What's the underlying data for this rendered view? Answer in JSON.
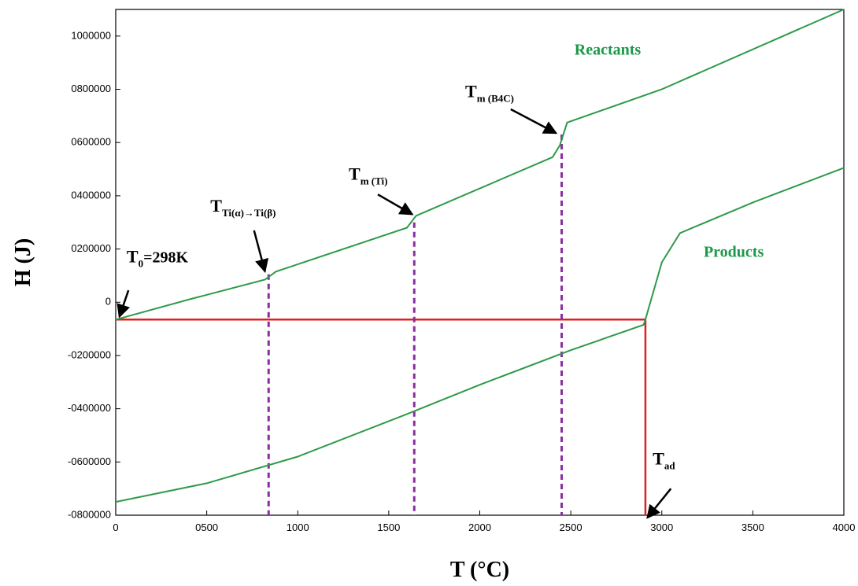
{
  "chart_data": {
    "type": "line",
    "title": "",
    "xlabel": "T (°C)",
    "ylabel": "H (J)",
    "xlim": [
      0,
      4000
    ],
    "ylim": [
      -800000,
      1100000
    ],
    "x_ticks": [
      {
        "value": 0,
        "label": "0"
      },
      {
        "value": 500,
        "label": "0500"
      },
      {
        "value": 1000,
        "label": "1000"
      },
      {
        "value": 1500,
        "label": "1500"
      },
      {
        "value": 2000,
        "label": "2000"
      },
      {
        "value": 2500,
        "label": "2500"
      },
      {
        "value": 3000,
        "label": "3000"
      },
      {
        "value": 3500,
        "label": "3500"
      },
      {
        "value": 4000,
        "label": "4000"
      }
    ],
    "y_ticks": [
      {
        "value": 1000000,
        "label": "1000000"
      },
      {
        "value": 800000,
        "label": "0800000"
      },
      {
        "value": 600000,
        "label": "0600000"
      },
      {
        "value": 400000,
        "label": "0400000"
      },
      {
        "value": 200000,
        "label": "0200000"
      },
      {
        "value": 0,
        "label": "0"
      },
      {
        "value": -200000,
        "label": "-0200000"
      },
      {
        "value": -400000,
        "label": "-0400000"
      },
      {
        "value": -600000,
        "label": "-0600000"
      },
      {
        "value": -800000,
        "label": "-0800000"
      }
    ],
    "grid": false,
    "series": [
      {
        "name": "Reactants",
        "color": "#2e9a4a",
        "points": [
          [
            0,
            -65000
          ],
          [
            400,
            10000
          ],
          [
            820,
            85000
          ],
          [
            880,
            115000
          ],
          [
            1600,
            280000
          ],
          [
            1650,
            325000
          ],
          [
            2400,
            545000
          ],
          [
            2440,
            590000
          ],
          [
            2480,
            675000
          ],
          [
            3000,
            800000
          ],
          [
            4000,
            1100000
          ]
        ]
      },
      {
        "name": "Products",
        "color": "#2e9a4a",
        "points": [
          [
            0,
            -750000
          ],
          [
            500,
            -680000
          ],
          [
            1000,
            -580000
          ],
          [
            1600,
            -420000
          ],
          [
            2000,
            -310000
          ],
          [
            2500,
            -180000
          ],
          [
            2900,
            -85000
          ],
          [
            2910,
            -65000
          ],
          [
            3000,
            150000
          ],
          [
            3100,
            260000
          ],
          [
            3500,
            375000
          ],
          [
            4000,
            505000
          ]
        ]
      }
    ],
    "reference_lines": {
      "color": "#e02020",
      "h_level": -65000,
      "v_at": 2910
    },
    "dashed_markers": {
      "color": "#8a2ca0",
      "x": [
        840,
        1640,
        2450
      ],
      "tops": [
        105000,
        300000,
        630000
      ]
    },
    "labels": {
      "reactants": {
        "text": "Reactants",
        "x": 2520,
        "y": 930000
      },
      "products": {
        "text": "Products",
        "x": 3230,
        "y": 170000
      }
    },
    "annotations": [
      {
        "main": "T",
        "sub": "0",
        "rest": "=298K",
        "text_x": 60,
        "text_y": 150000,
        "arrow_from": [
          70,
          45000
        ],
        "arrow_to": [
          20,
          -55000
        ]
      },
      {
        "main": "T",
        "sub": "Ti(α)→Ti(β)",
        "rest": "",
        "text_x": 520,
        "text_y": 340000,
        "arrow_from": [
          760,
          270000
        ],
        "arrow_to": [
          820,
          115000
        ]
      },
      {
        "main": "T",
        "sub": "m (Ti)",
        "rest": "",
        "text_x": 1280,
        "text_y": 460000,
        "arrow_from": [
          1440,
          405000
        ],
        "arrow_to": [
          1630,
          330000
        ]
      },
      {
        "main": "T",
        "sub": "m (B4C)",
        "rest": "",
        "text_x": 1920,
        "text_y": 770000,
        "arrow_from": [
          2170,
          725000
        ],
        "arrow_to": [
          2420,
          635000
        ]
      },
      {
        "main": "T",
        "sub": "ad",
        "rest": "",
        "text_x": 2950,
        "text_y": -610000,
        "arrow_from": [
          3050,
          -700000
        ],
        "arrow_to": [
          2920,
          -810000
        ]
      }
    ]
  }
}
